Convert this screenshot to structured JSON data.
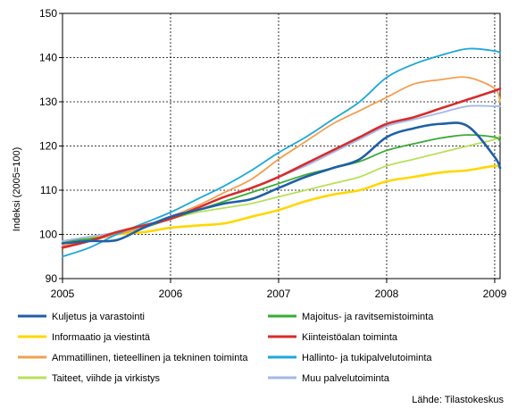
{
  "chart_data": {
    "type": "line",
    "title": "",
    "xlabel": "",
    "ylabel": "Indeksi (2005=100)",
    "xlim": [
      2005.0,
      2009.05
    ],
    "ylim": [
      90,
      150
    ],
    "x_ticks": [
      "2005",
      "2006",
      "2007",
      "2008",
      "2009"
    ],
    "y_ticks": [
      "90",
      "100",
      "110",
      "120",
      "130",
      "140",
      "150"
    ],
    "grid": "dashed",
    "legend": "bottom",
    "x": [
      2005.0,
      2005.25,
      2005.5,
      2005.75,
      2006.0,
      2006.25,
      2006.5,
      2006.75,
      2007.0,
      2007.25,
      2007.5,
      2007.75,
      2008.0,
      2008.25,
      2008.5,
      2008.75,
      2009.0,
      2009.05
    ],
    "series": [
      {
        "name": "Kuljetus ja varastointi",
        "color": "#1f5fa5",
        "values": [
          98.0,
          98.5,
          98.7,
          101.5,
          104.0,
          105.5,
          107.0,
          108.0,
          110.5,
          113.0,
          115.0,
          117.0,
          122.0,
          124.0,
          125.0,
          124.5,
          117.5,
          115.0
        ]
      },
      {
        "name": "Majoitus- ja ravitsemistoiminta",
        "color": "#3aaa35",
        "values": [
          98.5,
          99.0,
          100.0,
          101.5,
          103.5,
          105.5,
          107.5,
          109.5,
          111.5,
          113.5,
          115.0,
          116.5,
          119.0,
          120.5,
          121.8,
          122.5,
          122.0,
          121.0
        ]
      },
      {
        "name": "Informaatio ja viestintä",
        "color": "#ffd700",
        "values": [
          98.0,
          99.0,
          100.0,
          100.5,
          101.5,
          102.0,
          102.5,
          104.0,
          105.5,
          107.5,
          109.0,
          110.0,
          112.0,
          113.0,
          114.0,
          114.5,
          115.5,
          115.0
        ]
      },
      {
        "name": "Kiinteistöalan toiminta",
        "color": "#d62c2c",
        "values": [
          97.0,
          98.5,
          100.5,
          102.0,
          103.5,
          106.0,
          108.5,
          110.5,
          113.0,
          116.0,
          119.0,
          122.0,
          125.0,
          126.5,
          128.5,
          130.5,
          132.5,
          133.0
        ]
      },
      {
        "name": "Ammatillinen, tieteellinen ja tekninen toiminta",
        "color": "#f0a050",
        "values": [
          97.5,
          98.5,
          100.0,
          101.5,
          104.0,
          106.5,
          109.5,
          112.5,
          117.0,
          121.0,
          125.0,
          128.0,
          131.0,
          134.0,
          135.0,
          135.5,
          133.0,
          130.0
        ]
      },
      {
        "name": "Hallinto- ja tukipalvelutoiminta",
        "color": "#1ea8d8",
        "values": [
          95.0,
          97.0,
          100.0,
          102.5,
          105.0,
          108.0,
          111.0,
          114.5,
          118.5,
          122.0,
          126.0,
          130.0,
          135.5,
          138.5,
          140.5,
          142.0,
          141.5,
          141.0
        ]
      },
      {
        "name": "Taiteet, viihde ja virkistys",
        "color": "#b8e05a",
        "values": [
          98.0,
          99.0,
          100.0,
          102.0,
          103.5,
          105.0,
          106.0,
          107.0,
          108.5,
          110.0,
          111.5,
          113.0,
          115.5,
          117.0,
          118.5,
          120.0,
          121.5,
          122.5
        ]
      },
      {
        "name": "Muu palvelutoiminta",
        "color": "#a3b8e8",
        "values": [
          98.5,
          99.5,
          100.5,
          102.0,
          104.0,
          106.0,
          108.5,
          110.5,
          113.0,
          115.5,
          118.5,
          121.5,
          124.5,
          126.0,
          127.5,
          129.0,
          129.0,
          129.0
        ]
      }
    ],
    "source": "Lähde: Tilastokeskus"
  }
}
